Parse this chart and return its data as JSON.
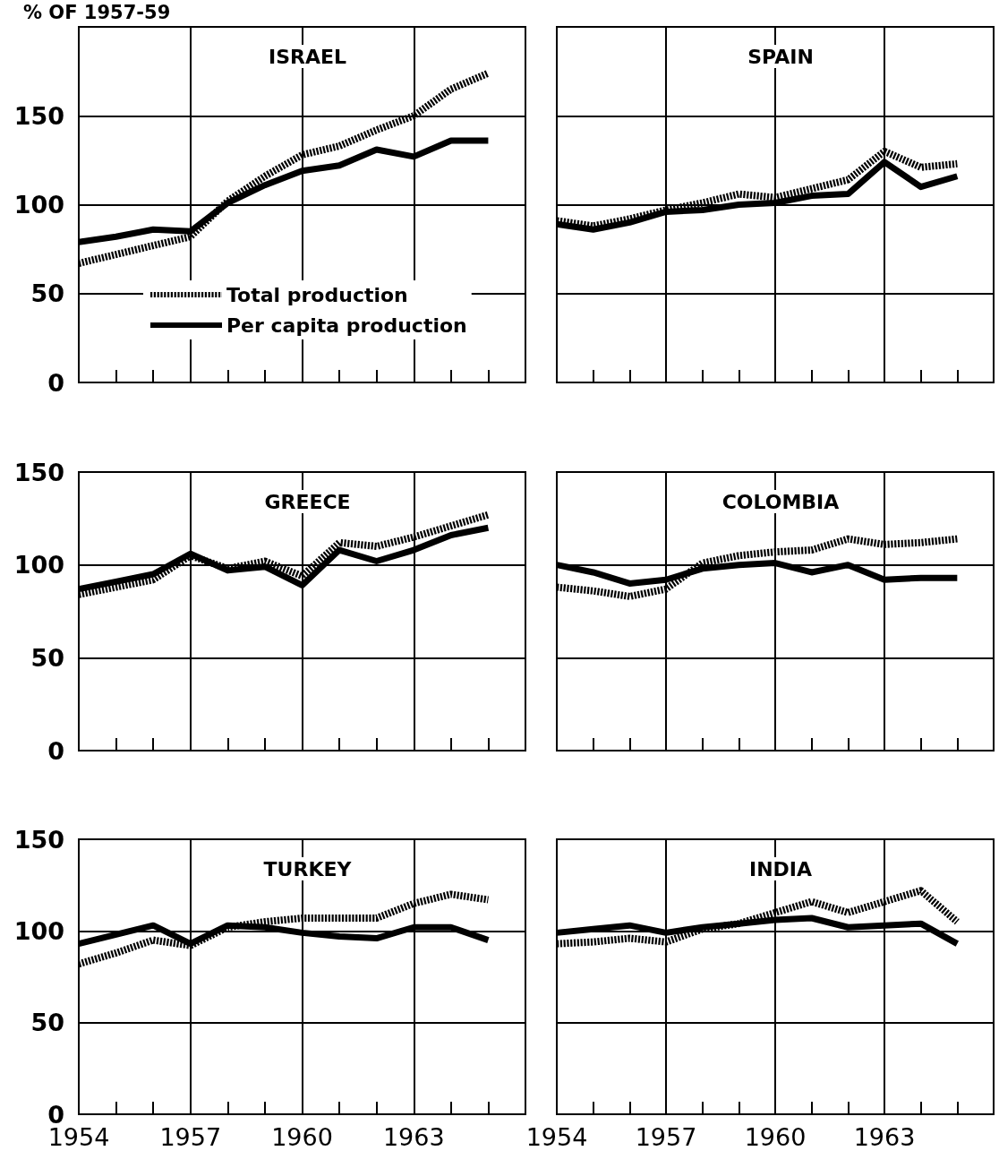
{
  "chart_data": [
    {
      "type": "line",
      "title": "ISRAEL",
      "ylabel": "% OF 1957-59",
      "legend": "bottom",
      "grid": true,
      "tick_labels": "y",
      "marker": "none",
      "x": [
        1954,
        1955,
        1956,
        1957,
        1958,
        1959,
        1960,
        1961,
        1962,
        1963,
        1964,
        1965
      ],
      "xlim": [
        1954,
        1966
      ],
      "xticks": [
        {
          "value": 1954,
          "label": null
        },
        {
          "value": 1955,
          "label": null
        },
        {
          "value": 1956,
          "label": null
        },
        {
          "value": 1957,
          "label": null
        },
        {
          "value": 1958,
          "label": null
        },
        {
          "value": 1959,
          "label": null
        },
        {
          "value": 1960,
          "label": null
        },
        {
          "value": 1961,
          "label": null
        },
        {
          "value": 1962,
          "label": null
        },
        {
          "value": 1963,
          "label": null
        },
        {
          "value": 1964,
          "label": null
        },
        {
          "value": 1965,
          "label": null
        }
      ],
      "ylim": [
        0,
        200
      ],
      "yticks": [
        0,
        50,
        100,
        150
      ],
      "series": [
        {
          "name": "Total production",
          "color": "#000000",
          "line_style": "dotted",
          "values": [
            67,
            72,
            77,
            82,
            102,
            116,
            128,
            133,
            142,
            150,
            165,
            174
          ]
        },
        {
          "name": "Per capita production",
          "color": "#000000",
          "line_style": "solid",
          "values": [
            79,
            82,
            86,
            85,
            101,
            111,
            119,
            122,
            131,
            127,
            136,
            136
          ]
        }
      ]
    },
    {
      "type": "line",
      "title": "SPAIN",
      "grid": true,
      "tick_labels": false,
      "marker": "none",
      "x": [
        1954,
        1955,
        1956,
        1957,
        1958,
        1959,
        1960,
        1961,
        1962,
        1963,
        1964,
        1965
      ],
      "xlim": [
        1954,
        1966
      ],
      "xticks": [
        {
          "value": 1954,
          "label": null
        },
        {
          "value": 1955,
          "label": null
        },
        {
          "value": 1956,
          "label": null
        },
        {
          "value": 1957,
          "label": null
        },
        {
          "value": 1958,
          "label": null
        },
        {
          "value": 1959,
          "label": null
        },
        {
          "value": 1960,
          "label": null
        },
        {
          "value": 1961,
          "label": null
        },
        {
          "value": 1962,
          "label": null
        },
        {
          "value": 1963,
          "label": null
        },
        {
          "value": 1964,
          "label": null
        },
        {
          "value": 1965,
          "label": null
        }
      ],
      "ylim": [
        0,
        200
      ],
      "yticks": [
        0,
        50,
        100,
        150
      ],
      "series": [
        {
          "color": "#000000",
          "line_style": "dotted",
          "values": [
            91,
            88,
            92,
            97,
            101,
            106,
            104,
            109,
            114,
            130,
            121,
            123
          ]
        },
        {
          "color": "#000000",
          "line_style": "solid",
          "values": [
            89,
            86,
            90,
            96,
            97,
            100,
            101,
            105,
            106,
            124,
            110,
            116
          ]
        }
      ]
    },
    {
      "type": "line",
      "title": "GREECE",
      "grid": true,
      "tick_labels": "y",
      "marker": "none",
      "x": [
        1954,
        1955,
        1956,
        1957,
        1958,
        1959,
        1960,
        1961,
        1962,
        1963,
        1964,
        1965
      ],
      "xlim": [
        1954,
        1966
      ],
      "xticks": [
        {
          "value": 1954,
          "label": null
        },
        {
          "value": 1955,
          "label": null
        },
        {
          "value": 1956,
          "label": null
        },
        {
          "value": 1957,
          "label": null
        },
        {
          "value": 1958,
          "label": null
        },
        {
          "value": 1959,
          "label": null
        },
        {
          "value": 1960,
          "label": null
        },
        {
          "value": 1961,
          "label": null
        },
        {
          "value": 1962,
          "label": null
        },
        {
          "value": 1963,
          "label": null
        },
        {
          "value": 1964,
          "label": null
        },
        {
          "value": 1965,
          "label": null
        }
      ],
      "ylim": [
        0,
        150
      ],
      "yticks": [
        0,
        50,
        100,
        150
      ],
      "series": [
        {
          "color": "#000000",
          "line_style": "dotted",
          "values": [
            84,
            88,
            92,
            105,
            98,
            102,
            94,
            112,
            110,
            115,
            121,
            127
          ]
        },
        {
          "color": "#000000",
          "line_style": "solid",
          "values": [
            87,
            91,
            95,
            106,
            97,
            99,
            89,
            108,
            102,
            108,
            116,
            120
          ]
        }
      ]
    },
    {
      "type": "line",
      "title": "COLOMBIA",
      "grid": true,
      "tick_labels": false,
      "marker": "none",
      "x": [
        1954,
        1955,
        1956,
        1957,
        1958,
        1959,
        1960,
        1961,
        1962,
        1963,
        1964,
        1965
      ],
      "xlim": [
        1954,
        1966
      ],
      "xticks": [
        {
          "value": 1954,
          "label": null
        },
        {
          "value": 1955,
          "label": null
        },
        {
          "value": 1956,
          "label": null
        },
        {
          "value": 1957,
          "label": null
        },
        {
          "value": 1958,
          "label": null
        },
        {
          "value": 1959,
          "label": null
        },
        {
          "value": 1960,
          "label": null
        },
        {
          "value": 1961,
          "label": null
        },
        {
          "value": 1962,
          "label": null
        },
        {
          "value": 1963,
          "label": null
        },
        {
          "value": 1964,
          "label": null
        },
        {
          "value": 1965,
          "label": null
        }
      ],
      "ylim": [
        0,
        150
      ],
      "yticks": [
        0,
        50,
        100,
        150
      ],
      "series": [
        {
          "color": "#000000",
          "line_style": "dotted",
          "values": [
            88,
            86,
            83,
            87,
            101,
            105,
            107,
            108,
            114,
            111,
            112,
            114
          ]
        },
        {
          "color": "#000000",
          "line_style": "solid",
          "values": [
            100,
            96,
            90,
            92,
            98,
            100,
            101,
            96,
            100,
            92,
            93,
            93
          ]
        }
      ]
    },
    {
      "type": "line",
      "title": "TURKEY",
      "grid": true,
      "marker": "none",
      "x": [
        1954,
        1955,
        1956,
        1957,
        1958,
        1959,
        1960,
        1961,
        1962,
        1963,
        1964,
        1965
      ],
      "xlim": [
        1954,
        1966
      ],
      "xticks": [
        {
          "value": 1954,
          "label": "1954"
        },
        {
          "value": 1955,
          "label": null
        },
        {
          "value": 1956,
          "label": null
        },
        {
          "value": 1957,
          "label": "1957"
        },
        {
          "value": 1958,
          "label": null
        },
        {
          "value": 1959,
          "label": null
        },
        {
          "value": 1960,
          "label": "1960"
        },
        {
          "value": 1961,
          "label": null
        },
        {
          "value": 1962,
          "label": null
        },
        {
          "value": 1963,
          "label": "1963"
        },
        {
          "value": 1964,
          "label": null
        },
        {
          "value": 1965,
          "label": null
        }
      ],
      "ylim": [
        0,
        150
      ],
      "yticks": [
        0,
        50,
        100,
        150
      ],
      "series": [
        {
          "color": "#000000",
          "line_style": "dotted",
          "values": [
            82,
            88,
            95,
            92,
            102,
            105,
            107,
            107,
            107,
            115,
            120,
            117
          ]
        },
        {
          "color": "#000000",
          "line_style": "solid",
          "values": [
            93,
            98,
            103,
            93,
            103,
            102,
            99,
            97,
            96,
            102,
            102,
            95
          ]
        }
      ]
    },
    {
      "type": "line",
      "title": "INDIA",
      "grid": true,
      "tick_labels": "x",
      "marker": "none",
      "x": [
        1954,
        1955,
        1956,
        1957,
        1958,
        1959,
        1960,
        1961,
        1962,
        1963,
        1964,
        1965
      ],
      "xlim": [
        1954,
        1966
      ],
      "xticks": [
        {
          "value": 1954,
          "label": "1954"
        },
        {
          "value": 1955,
          "label": null
        },
        {
          "value": 1956,
          "label": null
        },
        {
          "value": 1957,
          "label": "1957"
        },
        {
          "value": 1958,
          "label": null
        },
        {
          "value": 1959,
          "label": null
        },
        {
          "value": 1960,
          "label": "1960"
        },
        {
          "value": 1961,
          "label": null
        },
        {
          "value": 1962,
          "label": null
        },
        {
          "value": 1963,
          "label": "1963"
        },
        {
          "value": 1964,
          "label": null
        },
        {
          "value": 1965,
          "label": null
        }
      ],
      "ylim": [
        0,
        150
      ],
      "yticks": [
        0,
        50,
        100,
        150
      ],
      "series": [
        {
          "color": "#000000",
          "line_style": "dotted",
          "values": [
            93,
            94,
            96,
            94,
            101,
            104,
            110,
            116,
            110,
            116,
            122,
            105
          ]
        },
        {
          "color": "#000000",
          "line_style": "solid",
          "values": [
            99,
            101,
            103,
            99,
            102,
            104,
            106,
            107,
            102,
            103,
            104,
            93
          ]
        }
      ]
    }
  ]
}
